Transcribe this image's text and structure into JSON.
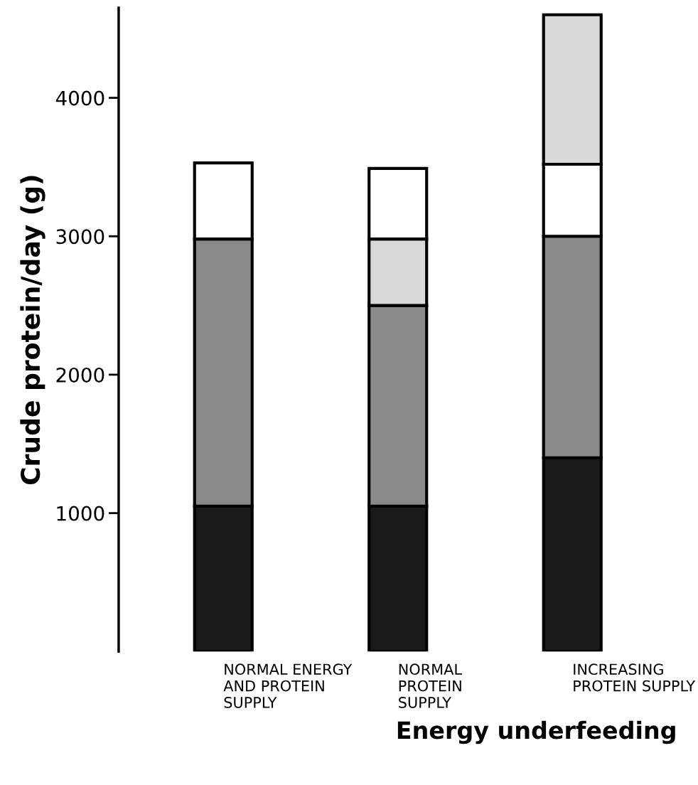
{
  "chart_data": {
    "type": "bar",
    "stacked": true,
    "categories": [
      "NORMAL ENERGY\nAND PROTEIN\nSUPPLY",
      "NORMAL\nPROTEIN\nSUPPLY",
      "INCREASING\nPROTEIN SUPPLY"
    ],
    "series": [
      {
        "color": "#1a1a1a",
        "values": [
          1050,
          1050,
          1400
        ]
      },
      {
        "color": "#8a8a8a",
        "values": [
          1930,
          1450,
          1600
        ]
      },
      {
        "color": "#d9d9d9",
        "values": [
          null,
          480,
          null
        ]
      },
      {
        "color": "#ffffff",
        "values": [
          550,
          510,
          520
        ]
      },
      {
        "color": "#d9d9d9",
        "values": [
          null,
          null,
          1080
        ]
      }
    ],
    "ylabel": "Crude protein/day (g)",
    "xlabel": "Energy underfeeding",
    "ylim": [
      0,
      4650
    ],
    "yticks": [
      1000,
      2000,
      3000,
      4000
    ],
    "grid": false,
    "legend": false
  }
}
